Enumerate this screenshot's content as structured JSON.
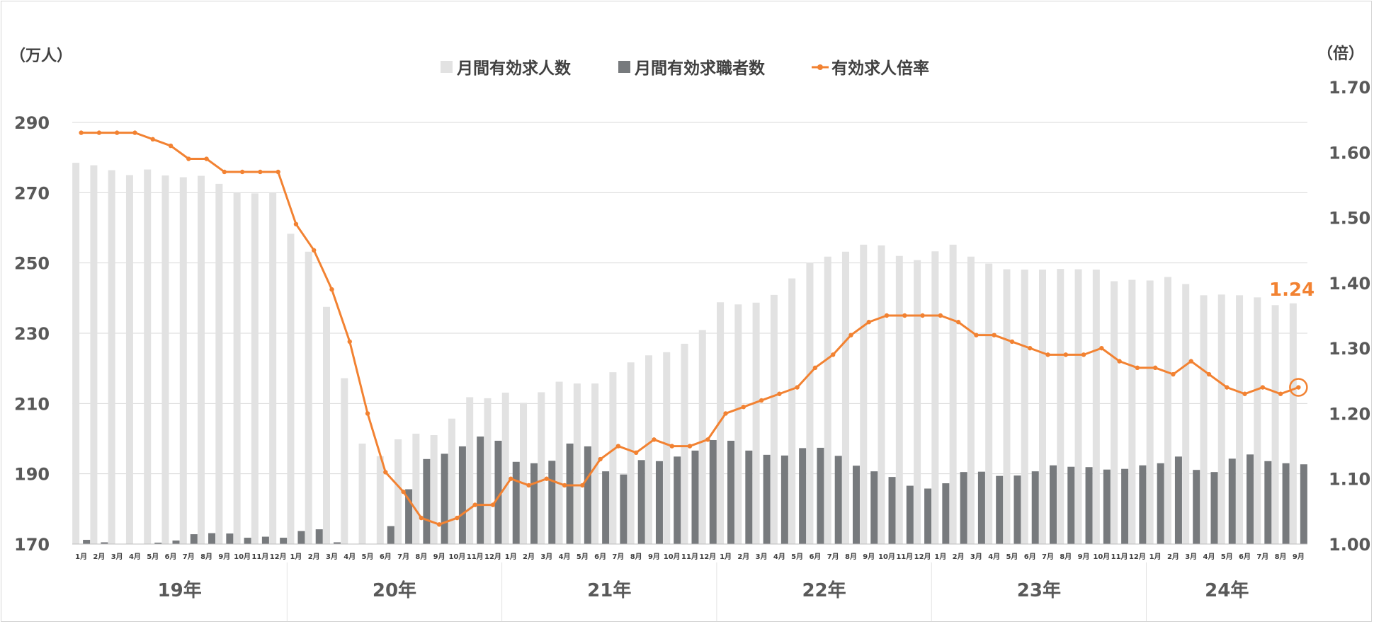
{
  "chart_data": {
    "type": "bar",
    "left_axis_unit": "（万人）",
    "right_axis_unit": "（倍）",
    "left_ticks": [
      "290",
      "270",
      "250",
      "230",
      "210",
      "190",
      "170"
    ],
    "right_ticks": [
      "1.70",
      "1.60",
      "1.50",
      "1.40",
      "1.30",
      "1.20",
      "1.10",
      "1.00"
    ],
    "ylim_left": [
      170,
      290
    ],
    "ylim_right": [
      1.0,
      1.65
    ],
    "years": [
      "19年",
      "20年",
      "21年",
      "22年",
      "23年",
      "24年"
    ],
    "months": [
      "1月",
      "2月",
      "3月",
      "4月",
      "5月",
      "6月",
      "7月",
      "8月",
      "9月",
      "10月",
      "11月",
      "12月",
      "1月",
      "2月",
      "3月",
      "4月",
      "5月",
      "6月",
      "7月",
      "8月",
      "9月",
      "10月",
      "11月",
      "12月",
      "1月",
      "2月",
      "3月",
      "4月",
      "5月",
      "6月",
      "7月",
      "8月",
      "9月",
      "10月",
      "11月",
      "12月",
      "1月",
      "2月",
      "3月",
      "4月",
      "5月",
      "6月",
      "7月",
      "8月",
      "9月",
      "10月",
      "11月",
      "12月",
      "1月",
      "2月",
      "3月",
      "4月",
      "5月",
      "6月",
      "7月",
      "8月",
      "9月",
      "10月",
      "11月",
      "12月",
      "1月",
      "2月",
      "3月",
      "4月",
      "5月",
      "6月",
      "7月",
      "8月",
      "9月"
    ],
    "series": [
      {
        "name": "月間有効求人数",
        "kind": "bar",
        "axis": "left",
        "color": "#e2e2e2",
        "values": [
          278.5,
          277.8,
          276.4,
          275.0,
          276.6,
          274.9,
          274.4,
          274.8,
          272.5,
          270.0,
          269.8,
          269.9,
          258.3,
          253.2,
          237.5,
          217.2,
          198.6,
          195.0,
          199.8,
          201.4,
          201.0,
          205.7,
          211.8,
          211.5,
          213.1,
          210.2,
          213.2,
          216.2,
          215.7,
          215.7,
          218.9,
          221.7,
          223.7,
          224.6,
          227.0,
          230.9,
          238.8,
          238.2,
          238.7,
          240.9,
          245.6,
          250.1,
          251.8,
          253.2,
          255.2,
          255.0,
          252.0,
          250.8,
          253.3,
          255.2,
          251.8,
          249.8,
          248.2,
          248.1,
          248.1,
          248.3,
          248.2,
          248.1,
          244.8,
          245.2,
          245.0,
          246.0,
          244.0,
          240.8,
          241.0,
          240.8,
          240.2,
          238.0,
          238.5
        ]
      },
      {
        "name": "月間有効求職者数",
        "kind": "bar",
        "axis": "left",
        "color": "#777a7d",
        "values": [
          171.2,
          170.5,
          170.0,
          169.8,
          170.4,
          171.0,
          172.8,
          173.1,
          173.0,
          171.8,
          172.1,
          171.8,
          173.7,
          174.2,
          170.5,
          170.0,
          170.1,
          175.1,
          185.6,
          194.2,
          195.7,
          197.8,
          200.6,
          199.4,
          193.4,
          193.0,
          193.7,
          198.6,
          197.8,
          190.7,
          189.8,
          193.9,
          193.6,
          194.9,
          196.6,
          199.6,
          199.4,
          196.6,
          195.4,
          195.2,
          197.3,
          197.4,
          195.1,
          192.3,
          190.7,
          189.1,
          186.6,
          185.8,
          187.3,
          190.5,
          190.6,
          189.4,
          189.5,
          190.7,
          192.4,
          192.0,
          191.9,
          191.2,
          191.4,
          192.4,
          193.0,
          194.9,
          191.1,
          190.5,
          194.3,
          195.5,
          193.6,
          193.0,
          192.7
        ]
      },
      {
        "name": "有効求人倍率",
        "kind": "line",
        "axis": "right",
        "color": "#f28232",
        "values": [
          1.63,
          1.63,
          1.63,
          1.63,
          1.62,
          1.61,
          1.59,
          1.59,
          1.57,
          1.57,
          1.57,
          1.57,
          1.49,
          1.45,
          1.39,
          1.31,
          1.2,
          1.11,
          1.08,
          1.04,
          1.03,
          1.04,
          1.06,
          1.06,
          1.1,
          1.09,
          1.1,
          1.09,
          1.09,
          1.13,
          1.15,
          1.14,
          1.16,
          1.15,
          1.15,
          1.16,
          1.2,
          1.21,
          1.22,
          1.23,
          1.24,
          1.27,
          1.29,
          1.32,
          1.34,
          1.35,
          1.35,
          1.35,
          1.35,
          1.34,
          1.32,
          1.32,
          1.31,
          1.3,
          1.29,
          1.29,
          1.29,
          1.3,
          1.28,
          1.27,
          1.27,
          1.26,
          1.28,
          1.26,
          1.24,
          1.23,
          1.24,
          1.23,
          1.24
        ]
      }
    ],
    "end_label": "1.24",
    "legend_position": "top-center",
    "grid": true
  }
}
